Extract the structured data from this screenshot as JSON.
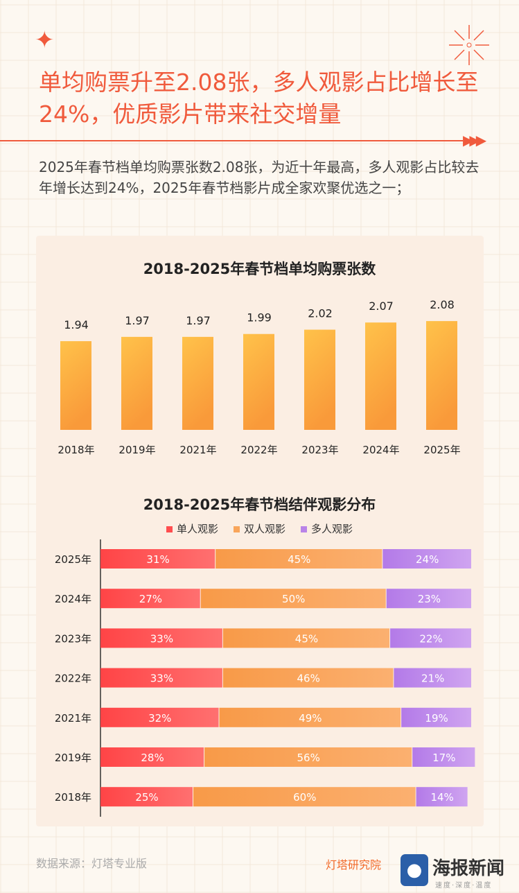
{
  "header": {
    "title": "单均购票升至2.08张，多人观影占比增长至24%，优质影片带来社交增量",
    "intro": "2025年春节档单均购票张数2.08张，为近十年最高，多人观影占比较去年增长达到24%，2025年春节档影片成全家欢聚优选之一；"
  },
  "colors": {
    "accent": "#f05a3c",
    "bar_top": "#ffc24a",
    "bar_bottom": "#f99a3a",
    "single": "#ff4d4f",
    "double": "#f9a55a",
    "multi": "#b983e8"
  },
  "chart_data": [
    {
      "type": "bar",
      "title": "2018-2025年春节档单均购票张数",
      "categories": [
        "2018年",
        "2019年",
        "2021年",
        "2022年",
        "2023年",
        "2024年",
        "2025年"
      ],
      "values": [
        1.94,
        1.97,
        1.97,
        1.99,
        2.02,
        2.07,
        2.08
      ],
      "data_labels": [
        "1.94",
        "1.97",
        "1.97",
        "1.99",
        "2.02",
        "2.07",
        "2.08"
      ],
      "grid": false
    },
    {
      "type": "bar",
      "orientation": "horizontal",
      "stacked": true,
      "title": "2018-2025年春节档结伴观影分布",
      "categories": [
        "2025年",
        "2024年",
        "2023年",
        "2022年",
        "2021年",
        "2019年",
        "2018年"
      ],
      "legend_position": "top",
      "series": [
        {
          "name": "单人观影",
          "values": [
            31,
            27,
            33,
            33,
            32,
            28,
            25
          ]
        },
        {
          "name": "双人观影",
          "values": [
            45,
            50,
            45,
            46,
            49,
            56,
            60
          ]
        },
        {
          "name": "多人观影",
          "values": [
            24,
            23,
            22,
            21,
            19,
            17,
            14
          ]
        }
      ],
      "unit": "%",
      "xlim": [
        0,
        100
      ]
    }
  ],
  "footer": {
    "source": "数据来源：灯塔专业版",
    "logo1": "灯塔研究院",
    "logo2": "海报新闻",
    "logo2_tagline": "速度·深度·温度"
  }
}
